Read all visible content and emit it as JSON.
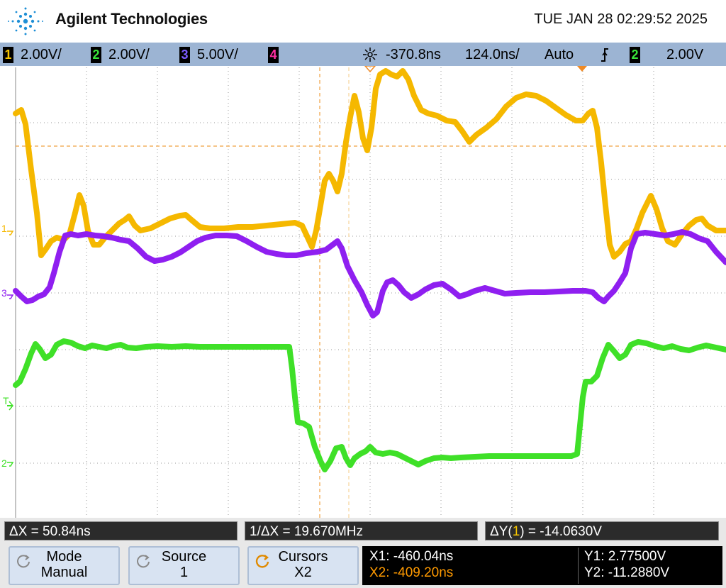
{
  "header": {
    "brand": "Agilent Technologies",
    "datetime": "TUE JAN 28 02:29:52 2025"
  },
  "channels": [
    {
      "num": "1",
      "scale": "2.00V/",
      "color": "#f5b800"
    },
    {
      "num": "2",
      "scale": "2.00V/",
      "color": "#3fe028"
    },
    {
      "num": "3",
      "scale": "5.00V/",
      "color": "#8f1ff0"
    },
    {
      "num": "4",
      "scale": "",
      "color": "#ff2ea3"
    }
  ],
  "timebase": {
    "delay": "-370.8ns",
    "scale": "124.0ns/",
    "trigger_mode": "Auto",
    "trigger_channel": "2",
    "trigger_level": "2.00V"
  },
  "markers": {
    "ch1": "1",
    "ch3": "3",
    "trig": "T",
    "ch2": "2"
  },
  "measurements": {
    "dx": "ΔX = 50.84ns",
    "inv_dx": "1/ΔX = 19.670MHz",
    "dy_prefix": "ΔY(",
    "dy_channel": "1",
    "dy_suffix": ") = -14.0630V"
  },
  "softkeys": {
    "mode_label": "Mode",
    "mode_value": "Manual",
    "source_label": "Source",
    "source_value": "1",
    "cursors_label": "Cursors",
    "cursors_value": "X2"
  },
  "cursor_readout": {
    "x1": "X1: -460.04ns",
    "x2": "X2: -409.20ns",
    "y1": "Y1: 2.77500V",
    "y2": "Y2: -11.2880V"
  },
  "colors": {
    "ch1": "#f5b800",
    "ch2": "#3fe028",
    "ch3": "#8f1ff0",
    "cursor": "#f0a040",
    "x2_text": "#ff9a00"
  }
}
